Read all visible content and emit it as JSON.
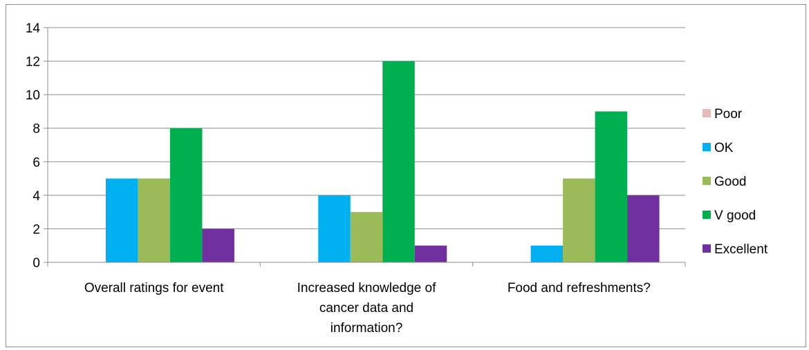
{
  "chart_data": {
    "type": "bar",
    "categories": [
      [
        "Overall ratings for event"
      ],
      [
        "Increased knowledge of",
        "cancer data and",
        "information?"
      ],
      [
        "Food and refreshments?"
      ]
    ],
    "series": [
      {
        "name": "Poor",
        "color": "#e6b9b8",
        "values": [
          0,
          0,
          0
        ]
      },
      {
        "name": "OK",
        "color": "#00b0f0",
        "values": [
          5,
          4,
          1
        ]
      },
      {
        "name": "Good",
        "color": "#9bbb59",
        "values": [
          5,
          3,
          5
        ]
      },
      {
        "name": "V good",
        "color": "#00b050",
        "values": [
          8,
          12,
          9
        ]
      },
      {
        "name": "Excellent",
        "color": "#7030a0",
        "values": [
          2,
          1,
          4
        ]
      }
    ],
    "yticks": [
      0,
      2,
      4,
      6,
      8,
      10,
      12,
      14
    ],
    "ylim": [
      0,
      14
    ],
    "grid": true,
    "legend_position": "right"
  }
}
